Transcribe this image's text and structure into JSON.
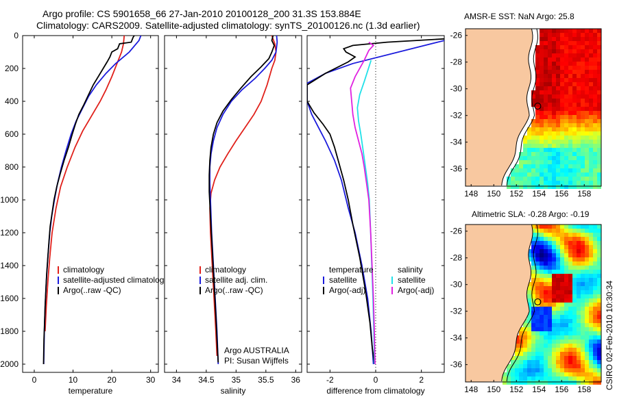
{
  "header": {
    "line1": "Argo profile: CS 5901658_66 27-Jan-2010 20100128_200 31.3S 153.884E",
    "line2": "Climatology: CARS2009. Satellite-adjusted climatology: synTS_20100126.nc (1.3d earlier)"
  },
  "footer_stamp": "CSIRO 02-Feb-2010 10:30:34",
  "colors": {
    "climatology": "#e0201a",
    "satellite": "#1a1adc",
    "argo": "#000000",
    "sal_satellite": "#20e0e8",
    "sal_argo": "#e020e0",
    "land": "#f8c8a0"
  },
  "chart_data": [
    {
      "type": "line",
      "xlabel": "temperature",
      "ylabel": "",
      "xlim": [
        -3,
        32
      ],
      "ylim": [
        2050,
        0
      ],
      "xticks": [
        0,
        10,
        20,
        30
      ],
      "yticks": [
        0,
        200,
        400,
        600,
        800,
        1000,
        1200,
        1400,
        1600,
        1800,
        2000
      ],
      "legend": {
        "placement": "lower-right",
        "entries": [
          "climatology",
          "satellite-adjusted climatology",
          "Argo(..raw -QC)"
        ]
      },
      "series": [
        {
          "name": "climatology",
          "color": "#e0201a",
          "points": [
            [
              23.2,
              0
            ],
            [
              23,
              50
            ],
            [
              22.5,
              100
            ],
            [
              21.5,
              160
            ],
            [
              20,
              250
            ],
            [
              18.5,
              330
            ],
            [
              17,
              400
            ],
            [
              15,
              480
            ],
            [
              12.5,
              580
            ],
            [
              10.5,
              680
            ],
            [
              8.5,
              800
            ],
            [
              6.8,
              920
            ],
            [
              5.6,
              1050
            ],
            [
              4.6,
              1200
            ],
            [
              4,
              1350
            ],
            [
              3.5,
              1500
            ],
            [
              3.1,
              1650
            ],
            [
              2.8,
              1800
            ]
          ]
        },
        {
          "name": "satellite-adjusted climatology",
          "color": "#1a1adc",
          "points": [
            [
              27.5,
              0
            ],
            [
              27,
              30
            ],
            [
              24.5,
              100
            ],
            [
              21,
              170
            ],
            [
              18.5,
              230
            ],
            [
              16,
              300
            ],
            [
              14,
              370
            ],
            [
              12.5,
              440
            ],
            [
              10.8,
              520
            ],
            [
              9.5,
              600
            ],
            [
              8.2,
              700
            ],
            [
              7,
              800
            ],
            [
              6,
              900
            ],
            [
              5.2,
              1000
            ],
            [
              4.5,
              1100
            ],
            [
              4,
              1200
            ],
            [
              3.5,
              1350
            ],
            [
              3.1,
              1500
            ],
            [
              2.8,
              1650
            ],
            [
              2.6,
              1800
            ],
            [
              2.45,
              2000
            ]
          ]
        },
        {
          "name": "Argo(..raw -QC)",
          "color": "#000000",
          "points": [
            [
              25.8,
              0
            ],
            [
              25.5,
              10
            ],
            [
              25,
              40
            ],
            [
              22,
              50
            ],
            [
              21.5,
              80
            ],
            [
              20,
              100
            ],
            [
              19.5,
              130
            ],
            [
              18.8,
              160
            ],
            [
              16.5,
              250
            ],
            [
              15.2,
              300
            ],
            [
              14.2,
              350
            ],
            [
              12.8,
              420
            ],
            [
              11.5,
              480
            ],
            [
              10.6,
              540
            ],
            [
              9.8,
              600
            ],
            [
              8.8,
              680
            ],
            [
              7.7,
              760
            ],
            [
              6.7,
              840
            ],
            [
              5.8,
              920
            ],
            [
              5.1,
              1000
            ],
            [
              4.6,
              1080
            ],
            [
              4.1,
              1160
            ],
            [
              3.8,
              1250
            ],
            [
              3.5,
              1350
            ],
            [
              3.2,
              1450
            ],
            [
              3,
              1550
            ],
            [
              2.8,
              1650
            ],
            [
              2.65,
              1750
            ],
            [
              2.5,
              1850
            ],
            [
              2.4,
              2000
            ]
          ]
        }
      ]
    },
    {
      "type": "line",
      "xlabel": "salinity",
      "ylabel": "",
      "xlim": [
        33.8,
        36.1
      ],
      "ylim": [
        2050,
        0
      ],
      "xticks": [
        34,
        34.5,
        35,
        35.5,
        36
      ],
      "legend": {
        "placement": "lower-right",
        "entries": [
          "climatology",
          "satellite adj. clim.",
          "Argo(..raw -QC)"
        ]
      },
      "annotation": [
        "Argo AUSTRALIA",
        "PI: Susan Wijffels"
      ],
      "series": [
        {
          "name": "climatology",
          "color": "#e0201a",
          "points": [
            [
              35.6,
              0
            ],
            [
              35.65,
              50
            ],
            [
              35.67,
              100
            ],
            [
              35.65,
              150
            ],
            [
              35.6,
              200
            ],
            [
              35.52,
              300
            ],
            [
              35.42,
              400
            ],
            [
              35.3,
              480
            ],
            [
              35.15,
              560
            ],
            [
              35,
              640
            ],
            [
              34.86,
              720
            ],
            [
              34.73,
              800
            ],
            [
              34.64,
              880
            ],
            [
              34.58,
              960
            ],
            [
              34.56,
              1050
            ],
            [
              34.57,
              1200
            ],
            [
              34.6,
              1400
            ],
            [
              34.63,
              1600
            ],
            [
              34.66,
              1800
            ],
            [
              34.68,
              1950
            ]
          ]
        },
        {
          "name": "satellite adj. clim.",
          "color": "#1a1adc",
          "points": [
            [
              35.68,
              0
            ],
            [
              35.69,
              40
            ],
            [
              35.67,
              100
            ],
            [
              35.6,
              150
            ],
            [
              35.48,
              200
            ],
            [
              35.32,
              260
            ],
            [
              35.1,
              330
            ],
            [
              34.92,
              400
            ],
            [
              34.78,
              480
            ],
            [
              34.68,
              560
            ],
            [
              34.62,
              640
            ],
            [
              34.58,
              720
            ],
            [
              34.56,
              800
            ],
            [
              34.56,
              900
            ],
            [
              34.57,
              1000
            ],
            [
              34.59,
              1200
            ],
            [
              34.62,
              1400
            ],
            [
              34.65,
              1600
            ],
            [
              34.68,
              1800
            ],
            [
              34.7,
              2000
            ]
          ]
        },
        {
          "name": "Argo(..raw -QC)",
          "color": "#000000",
          "points": [
            [
              35.62,
              0
            ],
            [
              35.6,
              30
            ],
            [
              35.64,
              60
            ],
            [
              35.6,
              100
            ],
            [
              35.55,
              140
            ],
            [
              35.42,
              190
            ],
            [
              35.25,
              250
            ],
            [
              35.08,
              320
            ],
            [
              34.92,
              390
            ],
            [
              34.78,
              460
            ],
            [
              34.68,
              530
            ],
            [
              34.62,
              600
            ],
            [
              34.58,
              680
            ],
            [
              34.56,
              760
            ],
            [
              34.55,
              850
            ],
            [
              34.55,
              950
            ],
            [
              34.57,
              1100
            ],
            [
              34.6,
              1300
            ],
            [
              34.63,
              1500
            ],
            [
              34.66,
              1700
            ],
            [
              34.68,
              1850
            ],
            [
              34.7,
              1990
            ]
          ]
        }
      ]
    },
    {
      "type": "line",
      "xlabel": "difference from climatology",
      "ylabel": "",
      "xlim": [
        -3,
        3
      ],
      "ylim": [
        2050,
        0
      ],
      "xticks": [
        -2,
        0,
        2
      ],
      "legend": {
        "placement": "lower-middle",
        "groups": [
          {
            "title": "temperature",
            "entries": [
              "satellite",
              "Argo(-adj)"
            ]
          },
          {
            "title": "salinity",
            "entries": [
              "satellite",
              "Argo(-adj)"
            ]
          }
        ]
      },
      "series": [
        {
          "name": "satellite",
          "color": "#1a1adc",
          "points": [
            [
              3,
              30
            ],
            [
              1,
              100
            ],
            [
              -1,
              170
            ],
            [
              -2.2,
              230
            ],
            [
              -3,
              290
            ],
            [
              -3,
              400
            ],
            [
              -2.8,
              480
            ],
            [
              -2.5,
              560
            ],
            [
              -2.2,
              640
            ],
            [
              -1.8,
              760
            ],
            [
              -1.5,
              880
            ],
            [
              -1.2,
              1050
            ],
            [
              -0.9,
              1200
            ],
            [
              -0.6,
              1400
            ],
            [
              -0.35,
              1600
            ],
            [
              -0.2,
              1800
            ],
            [
              -0.1,
              2000
            ]
          ]
        },
        {
          "name": "Argo(-adj)",
          "color": "#000000",
          "points": [
            [
              3,
              20
            ],
            [
              0.5,
              40
            ],
            [
              -1,
              60
            ],
            [
              -1.4,
              80
            ],
            [
              -1.3,
              100
            ],
            [
              -0.9,
              130
            ],
            [
              -1.2,
              160
            ],
            [
              -2.2,
              230
            ],
            [
              -3,
              300
            ],
            [
              -3,
              400
            ],
            [
              -2.7,
              470
            ],
            [
              -2.3,
              540
            ],
            [
              -2,
              600
            ],
            [
              -1.8,
              680
            ],
            [
              -1.6,
              780
            ],
            [
              -1.4,
              880
            ],
            [
              -1.2,
              1000
            ],
            [
              -1,
              1150
            ],
            [
              -0.7,
              1350
            ],
            [
              -0.45,
              1550
            ],
            [
              -0.25,
              1750
            ],
            [
              -0.15,
              1900
            ],
            [
              -0.05,
              2000
            ]
          ]
        },
        {
          "name": "satellite",
          "color": "#20e0e8",
          "points": [
            [
              -0.2,
              150
            ],
            [
              -0.5,
              280
            ],
            [
              -0.7,
              360
            ],
            [
              -0.8,
              440
            ],
            [
              -0.75,
              520
            ],
            [
              -0.65,
              600
            ],
            [
              -0.55,
              700
            ],
            [
              -0.45,
              800
            ],
            [
              -0.35,
              900
            ],
            [
              -0.28,
              1000
            ],
            [
              -0.22,
              1200
            ],
            [
              -0.17,
              1400
            ],
            [
              -0.12,
              1600
            ],
            [
              -0.08,
              1800
            ],
            [
              -0.05,
              2000
            ]
          ]
        },
        {
          "name": "Argo(-adj)",
          "color": "#e020e0",
          "points": [
            [
              -0.3,
              40
            ],
            [
              -0.1,
              60
            ],
            [
              -0.3,
              90
            ],
            [
              -0.5,
              150
            ],
            [
              -0.9,
              250
            ],
            [
              -1.1,
              320
            ],
            [
              -1.05,
              400
            ],
            [
              -1,
              480
            ],
            [
              -0.9,
              560
            ],
            [
              -0.75,
              640
            ],
            [
              -0.6,
              720
            ],
            [
              -0.5,
              800
            ],
            [
              -0.4,
              900
            ],
            [
              -0.3,
              1000
            ],
            [
              -0.22,
              1200
            ],
            [
              -0.16,
              1400
            ],
            [
              -0.1,
              1600
            ],
            [
              -0.06,
              1800
            ],
            [
              -0.03,
              2000
            ]
          ]
        }
      ]
    },
    {
      "type": "heatmap",
      "title": "AMSR-E SST: NaN Argo: 25.8",
      "xticks": [
        148,
        150,
        152,
        154,
        156,
        158
      ],
      "yticks": [
        -26,
        -28,
        -30,
        -32,
        -34,
        -36
      ],
      "xlim": [
        147.5,
        159.5
      ],
      "ylim": [
        -37.3,
        -25.5
      ],
      "marker": {
        "lon": 153.884,
        "lat": -31.3
      }
    },
    {
      "type": "heatmap",
      "title": "Altimetric SLA: -0.28 Argo: -0.19",
      "xticks": [
        148,
        150,
        152,
        154,
        156,
        158
      ],
      "yticks": [
        -26,
        -28,
        -30,
        -32,
        -34,
        -36
      ],
      "xlim": [
        147.5,
        159.5
      ],
      "ylim": [
        -37.3,
        -25.5
      ],
      "marker": {
        "lon": 153.884,
        "lat": -31.3
      }
    }
  ]
}
